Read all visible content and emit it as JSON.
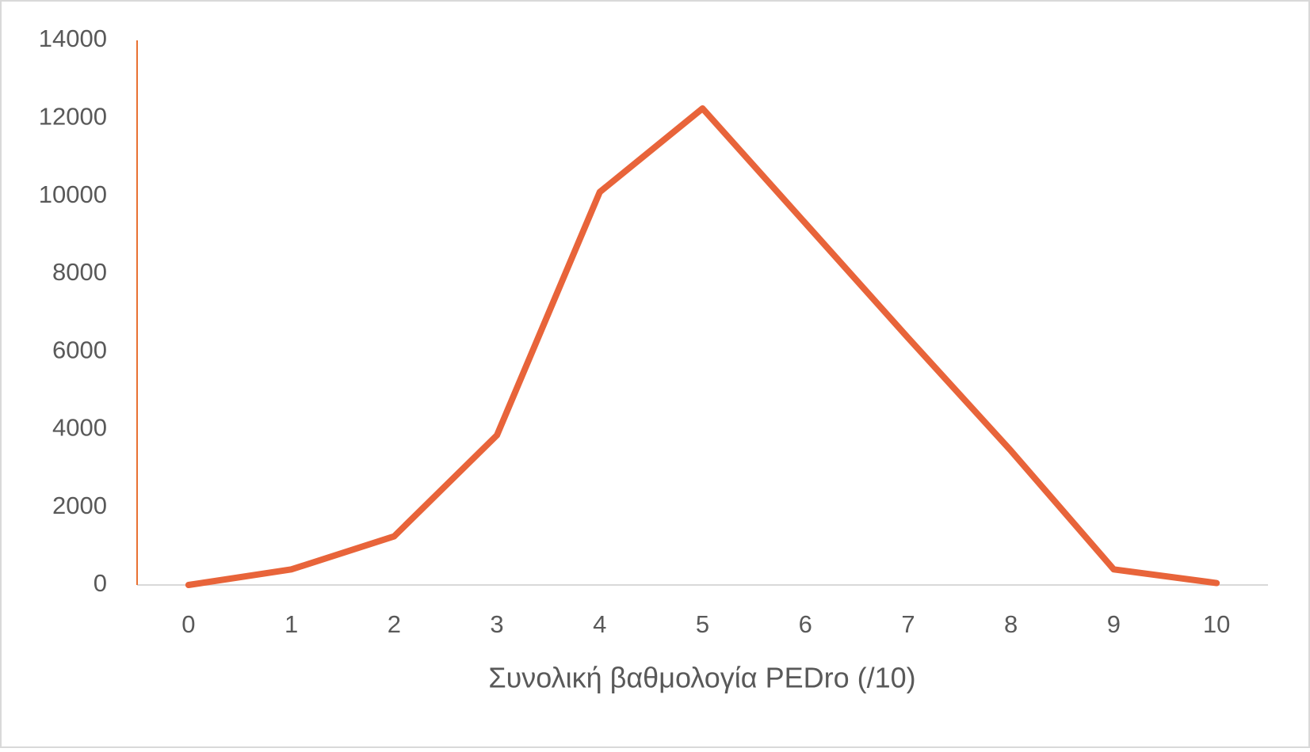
{
  "chart_data": {
    "type": "line",
    "x_label": "Συνολική βαθμολογία PEDro (/10)",
    "categories": [
      "0",
      "1",
      "2",
      "3",
      "4",
      "5",
      "6",
      "7",
      "8",
      "9",
      "10"
    ],
    "values": [
      0,
      400,
      1250,
      3850,
      10100,
      12250,
      9300,
      6350,
      3450,
      400,
      50
    ],
    "color": "#e8643a",
    "y_axis_color": "#e97132",
    "ylim": [
      0,
      14000
    ],
    "yticks": [
      0,
      2000,
      4000,
      6000,
      8000,
      10000,
      12000,
      14000
    ],
    "grid": false
  }
}
